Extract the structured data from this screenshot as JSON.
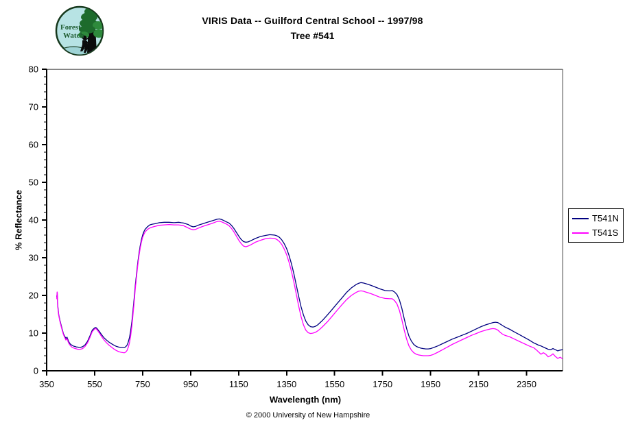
{
  "header": {
    "title": "VIRIS Data -- Guilford Central School -- 1997/98",
    "subtitle": "Tree #541"
  },
  "logo": {
    "line1": "Forest",
    "line2": "Watch"
  },
  "footer": {
    "copyright": "© 2000 University of New Hampshire"
  },
  "chart_data": {
    "type": "line",
    "title": "VIRIS Data -- Guilford Central School -- 1997/98",
    "subtitle": "Tree #541",
    "xlabel": "Wavelength (nm)",
    "ylabel": "% Reflectance",
    "xlim": [
      350,
      2500
    ],
    "ylim": [
      0,
      80
    ],
    "x_ticks": [
      350,
      550,
      750,
      950,
      1150,
      1350,
      1550,
      1750,
      1950,
      2150,
      2350
    ],
    "y_ticks": [
      0,
      10,
      20,
      30,
      40,
      50,
      60,
      70,
      80
    ],
    "y_minor_step": 2,
    "grid": false,
    "legend_position": "right-outside",
    "axis_color": "#000000",
    "border_color": "#808080",
    "x": [
      392,
      394,
      396,
      400,
      405,
      410,
      415,
      420,
      425,
      430,
      435,
      440,
      445,
      450,
      455,
      460,
      465,
      470,
      475,
      480,
      485,
      490,
      495,
      500,
      510,
      520,
      530,
      540,
      550,
      555,
      560,
      570,
      580,
      590,
      600,
      610,
      620,
      630,
      640,
      650,
      660,
      670,
      675,
      680,
      685,
      690,
      695,
      700,
      705,
      710,
      715,
      720,
      725,
      730,
      735,
      740,
      745,
      750,
      755,
      760,
      770,
      780,
      790,
      800,
      820,
      840,
      860,
      880,
      900,
      910,
      920,
      930,
      940,
      950,
      960,
      970,
      980,
      1000,
      1020,
      1040,
      1060,
      1070,
      1080,
      1090,
      1100,
      1110,
      1120,
      1130,
      1140,
      1150,
      1160,
      1170,
      1180,
      1190,
      1200,
      1220,
      1240,
      1260,
      1280,
      1300,
      1310,
      1320,
      1330,
      1340,
      1350,
      1360,
      1370,
      1380,
      1390,
      1400,
      1410,
      1420,
      1430,
      1440,
      1450,
      1460,
      1470,
      1480,
      1490,
      1500,
      1520,
      1540,
      1560,
      1580,
      1600,
      1620,
      1640,
      1650,
      1660,
      1670,
      1680,
      1700,
      1720,
      1740,
      1760,
      1780,
      1790,
      1800,
      1810,
      1820,
      1830,
      1840,
      1850,
      1860,
      1870,
      1880,
      1890,
      1900,
      1910,
      1920,
      1930,
      1940,
      1950,
      1960,
      1980,
      2000,
      2020,
      2040,
      2060,
      2080,
      2100,
      2120,
      2140,
      2160,
      2180,
      2200,
      2210,
      2220,
      2230,
      2240,
      2250,
      2260,
      2280,
      2300,
      2320,
      2340,
      2360,
      2380,
      2390,
      2400,
      2410,
      2420,
      2430,
      2440,
      2450,
      2460,
      2470,
      2480,
      2490,
      2500
    ],
    "series": [
      {
        "name": "T541N",
        "color": "#000080",
        "values": [
          19.5,
          20.8,
          17.5,
          15.0,
          13.5,
          12.2,
          11.0,
          9.8,
          9.2,
          8.6,
          8.9,
          8.0,
          7.4,
          7.0,
          6.8,
          6.6,
          6.5,
          6.4,
          6.3,
          6.3,
          6.2,
          6.2,
          6.3,
          6.4,
          6.9,
          7.8,
          9.2,
          10.8,
          11.4,
          11.5,
          11.2,
          10.4,
          9.5,
          8.7,
          8.1,
          7.6,
          7.2,
          6.8,
          6.5,
          6.3,
          6.2,
          6.2,
          6.2,
          6.4,
          6.8,
          7.6,
          8.8,
          10.5,
          13.0,
          16.0,
          19.5,
          23.0,
          26.0,
          28.8,
          31.2,
          33.2,
          34.8,
          36.0,
          36.9,
          37.5,
          38.2,
          38.7,
          38.9,
          39.0,
          39.3,
          39.4,
          39.4,
          39.3,
          39.4,
          39.3,
          39.2,
          39.0,
          38.8,
          38.4,
          38.2,
          38.3,
          38.6,
          39.0,
          39.4,
          39.8,
          40.2,
          40.3,
          40.1,
          39.8,
          39.5,
          39.2,
          38.6,
          37.8,
          36.8,
          35.8,
          34.9,
          34.3,
          34.1,
          34.2,
          34.5,
          35.1,
          35.6,
          35.9,
          36.1,
          36.0,
          35.8,
          35.4,
          34.7,
          33.7,
          32.4,
          30.6,
          28.4,
          25.8,
          22.8,
          19.8,
          17.0,
          14.8,
          13.2,
          12.2,
          11.7,
          11.6,
          11.8,
          12.2,
          12.8,
          13.4,
          14.8,
          16.3,
          17.8,
          19.3,
          20.8,
          22.0,
          22.9,
          23.2,
          23.4,
          23.3,
          23.1,
          22.7,
          22.2,
          21.7,
          21.3,
          21.2,
          21.3,
          20.9,
          20.2,
          18.8,
          16.6,
          13.8,
          11.2,
          9.2,
          7.9,
          7.0,
          6.5,
          6.2,
          6.0,
          5.9,
          5.8,
          5.8,
          5.9,
          6.1,
          6.6,
          7.2,
          7.8,
          8.4,
          8.9,
          9.4,
          9.9,
          10.5,
          11.1,
          11.7,
          12.2,
          12.6,
          12.8,
          12.9,
          12.8,
          12.4,
          12.0,
          11.6,
          11.0,
          10.3,
          9.6,
          8.9,
          8.2,
          7.4,
          7.1,
          6.8,
          6.6,
          6.3,
          6.0,
          5.7,
          5.6,
          5.9,
          5.6,
          5.3,
          5.5,
          5.6
        ]
      },
      {
        "name": "T541S",
        "color": "#FF00FF",
        "values": [
          19.0,
          21.0,
          17.0,
          14.8,
          13.2,
          11.9,
          10.7,
          9.6,
          8.9,
          8.2,
          8.5,
          7.6,
          7.0,
          6.6,
          6.3,
          6.1,
          6.0,
          5.9,
          5.8,
          5.7,
          5.7,
          5.7,
          5.8,
          5.9,
          6.5,
          7.4,
          8.8,
          10.4,
          11.1,
          11.2,
          10.9,
          10.0,
          9.0,
          8.1,
          7.4,
          6.8,
          6.3,
          5.8,
          5.4,
          5.1,
          4.9,
          4.8,
          4.8,
          5.0,
          5.4,
          6.2,
          7.4,
          9.2,
          11.8,
          15.0,
          18.5,
          22.2,
          25.3,
          28.2,
          30.6,
          32.6,
          34.2,
          35.4,
          36.2,
          36.8,
          37.5,
          37.9,
          38.1,
          38.3,
          38.6,
          38.7,
          38.8,
          38.7,
          38.7,
          38.6,
          38.5,
          38.2,
          37.9,
          37.6,
          37.4,
          37.5,
          37.8,
          38.3,
          38.7,
          39.1,
          39.6,
          39.7,
          39.5,
          39.2,
          38.9,
          38.5,
          37.8,
          36.9,
          35.8,
          34.7,
          33.8,
          33.1,
          32.9,
          33.1,
          33.4,
          34.1,
          34.6,
          35.0,
          35.2,
          35.1,
          34.8,
          34.3,
          33.5,
          32.3,
          30.8,
          28.8,
          26.4,
          23.6,
          20.4,
          17.2,
          14.4,
          12.2,
          10.8,
          10.1,
          9.9,
          10.0,
          10.2,
          10.6,
          11.1,
          11.7,
          13.0,
          14.5,
          16.0,
          17.5,
          18.9,
          20.0,
          20.8,
          21.1,
          21.2,
          21.1,
          20.9,
          20.5,
          20.0,
          19.5,
          19.2,
          19.1,
          19.1,
          18.6,
          17.7,
          16.0,
          13.6,
          10.8,
          8.4,
          6.6,
          5.5,
          4.8,
          4.4,
          4.2,
          4.1,
          4.0,
          4.0,
          4.0,
          4.1,
          4.3,
          4.9,
          5.6,
          6.3,
          7.0,
          7.6,
          8.2,
          8.8,
          9.4,
          9.9,
          10.4,
          10.8,
          11.1,
          11.2,
          11.1,
          10.8,
          10.2,
          9.7,
          9.4,
          9.0,
          8.4,
          7.8,
          7.2,
          6.6,
          6.1,
          5.6,
          5.0,
          4.4,
          4.8,
          4.4,
          3.7,
          4.0,
          4.5,
          3.8,
          3.3,
          3.6,
          3.2
        ]
      }
    ]
  }
}
